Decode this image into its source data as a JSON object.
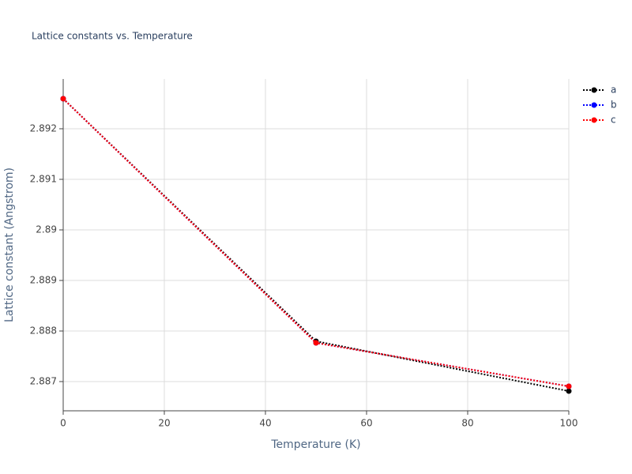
{
  "chart_data": {
    "type": "line",
    "title": "Lattice constants vs. Temperature",
    "x_label": "Temperature (K)",
    "y_label": "Lattice constant (Angstrom)",
    "x": [
      0,
      50,
      100
    ],
    "series": [
      {
        "name": "a",
        "color": "#000000",
        "values": [
          2.892594,
          2.887797,
          2.886812
        ]
      },
      {
        "name": "b",
        "color": "#0000ff",
        "values": [
          2.892594,
          2.887766,
          2.886906
        ]
      },
      {
        "name": "c",
        "color": "#ff0000",
        "values": [
          2.892594,
          2.887766,
          2.886906
        ]
      }
    ],
    "xlim": [
      0,
      100
    ],
    "xticks": [
      0,
      20,
      40,
      60,
      80,
      100
    ],
    "ylim": [
      2.886422,
      2.892984
    ],
    "yticks": [
      2.887,
      2.888,
      2.889,
      2.89,
      2.891,
      2.892
    ],
    "grid": true,
    "legend": "right",
    "line_style": "dotted"
  }
}
